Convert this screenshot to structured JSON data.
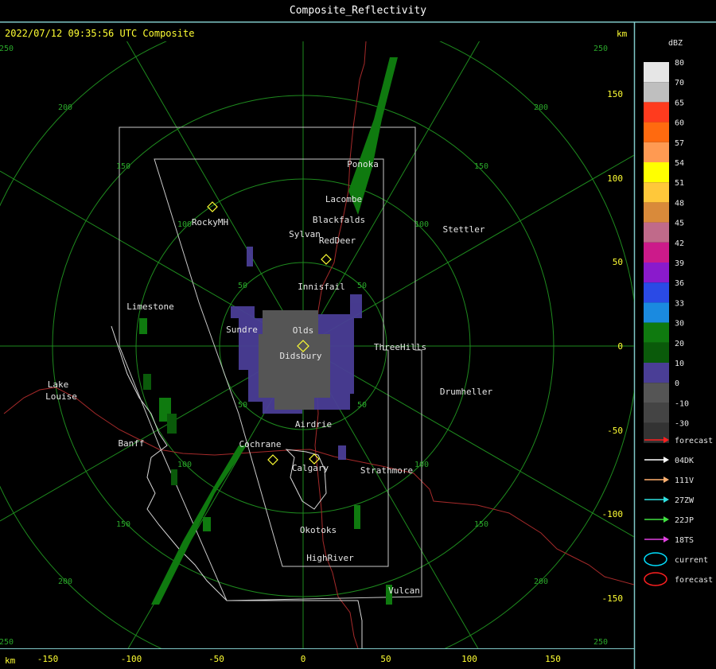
{
  "window": {
    "title": "Composite_Reflectivity"
  },
  "header": {
    "timestamp": "2022/07/12 09:35:56 UTC Composite",
    "units_top": "km",
    "units_bottom": "km"
  },
  "axes": {
    "x_ticks": [
      "-150",
      "-100",
      "-50",
      "0",
      "50",
      "100",
      "150"
    ],
    "y_ticks": [
      "150",
      "100",
      "50",
      "0",
      "-50",
      "-100",
      "-150"
    ],
    "ring_labels": [
      "50",
      "100",
      "150",
      "200",
      "250"
    ]
  },
  "towns": [
    {
      "name": "Ponoka"
    },
    {
      "name": "Lacombe"
    },
    {
      "name": "Blackfalds"
    },
    {
      "name": "Sylvan"
    },
    {
      "name": "RedDeer"
    },
    {
      "name": "Stettler"
    },
    {
      "name": "RockyMH"
    },
    {
      "name": "Innisfail"
    },
    {
      "name": "Limestone"
    },
    {
      "name": "Sundre"
    },
    {
      "name": "Olds"
    },
    {
      "name": "Didsbury"
    },
    {
      "name": "ThreeHills"
    },
    {
      "name": "Lake"
    },
    {
      "name": "Louise"
    },
    {
      "name": "Drumheller"
    },
    {
      "name": "Airdrie"
    },
    {
      "name": "Banff"
    },
    {
      "name": "Cochrane"
    },
    {
      "name": "Calgary"
    },
    {
      "name": "Strathmore"
    },
    {
      "name": "Okotoks"
    },
    {
      "name": "HighRiver"
    },
    {
      "name": "Vulcan"
    }
  ],
  "legend": {
    "unit": "dBZ",
    "levels": [
      {
        "label": "80",
        "color": "#e6e6e6"
      },
      {
        "label": "70",
        "color": "#bfbfbf"
      },
      {
        "label": "65",
        "color": "#ff3b1e"
      },
      {
        "label": "60",
        "color": "#ff6a0f"
      },
      {
        "label": "57",
        "color": "#ff9a52"
      },
      {
        "label": "54",
        "color": "#ffff00"
      },
      {
        "label": "51",
        "color": "#ffc83a"
      },
      {
        "label": "48",
        "color": "#d98a3a"
      },
      {
        "label": "45",
        "color": "#c06a8a"
      },
      {
        "label": "42",
        "color": "#cc1a8a"
      },
      {
        "label": "39",
        "color": "#8a1acc"
      },
      {
        "label": "36",
        "color": "#2a4ae6"
      },
      {
        "label": "33",
        "color": "#1a8ae0"
      },
      {
        "label": "30",
        "color": "#0f7a0f"
      },
      {
        "label": "20",
        "color": "#0a5a0a"
      },
      {
        "label": "10",
        "color": "#4a3e96"
      },
      {
        "label": "0",
        "color": "#555555"
      },
      {
        "label": "-10",
        "color": "#444444"
      },
      {
        "label": "-30",
        "color": "#333333"
      }
    ],
    "tracks": [
      {
        "label": "forecast",
        "color": "#ff2020",
        "kind": "arrow"
      },
      {
        "label": "04DK",
        "color": "#ffffff",
        "kind": "arrow"
      },
      {
        "label": "111V",
        "color": "#ffb070",
        "kind": "arrow"
      },
      {
        "label": "27ZW",
        "color": "#30e0e0",
        "kind": "arrow"
      },
      {
        "label": "22JP",
        "color": "#40e040",
        "kind": "arrow"
      },
      {
        "label": "18TS",
        "color": "#e040e0",
        "kind": "arrow"
      },
      {
        "label": "current",
        "color": "#00e0ff",
        "kind": "ellipse"
      },
      {
        "label": "forecast",
        "color": "#ff2020",
        "kind": "ellipse"
      }
    ]
  }
}
